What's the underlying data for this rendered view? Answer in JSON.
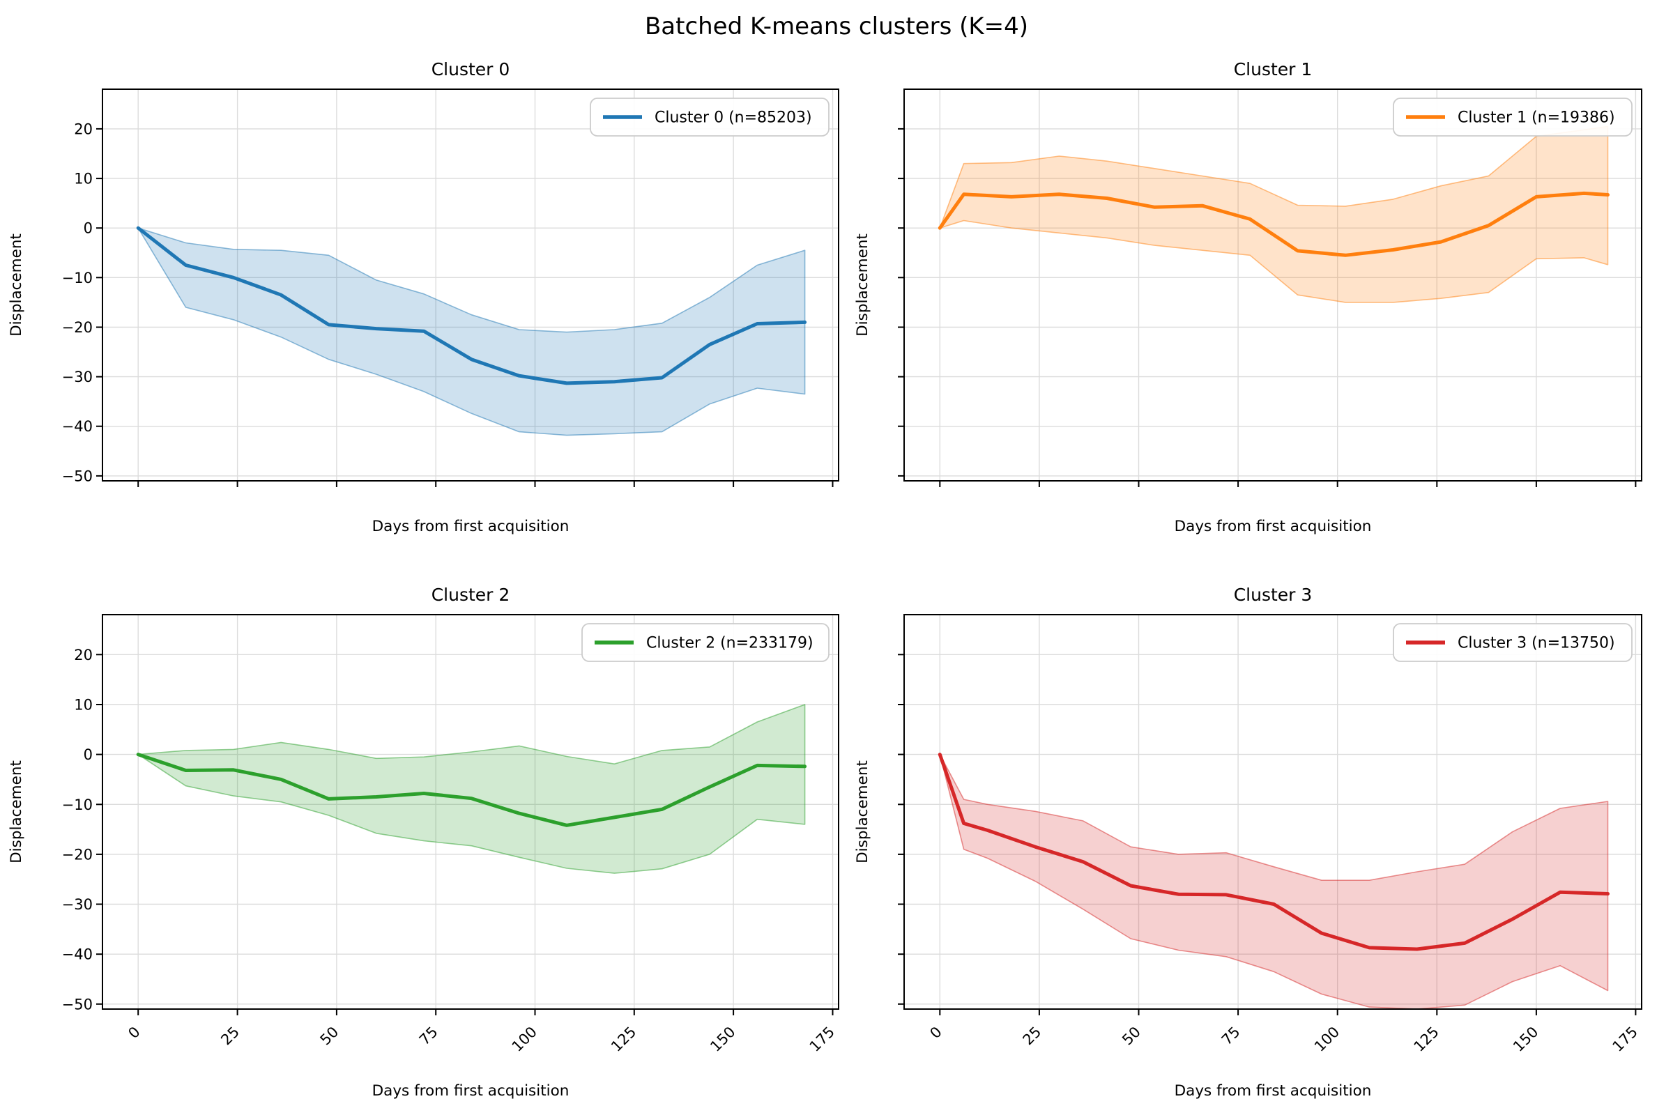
{
  "title": "Batched K-means clusters (K=4)",
  "chart_data": [
    {
      "type": "line",
      "title": "Cluster 0",
      "legend_label": "Cluster 0 (n=85203)",
      "color": "#1f77b4",
      "xlabel": "Days from first acquisition",
      "ylabel": "Displacement",
      "xlim": [
        -9,
        176.5
      ],
      "ylim": [
        -51,
        28
      ],
      "x_ticks": [
        0,
        25,
        50,
        75,
        100,
        125,
        150,
        175
      ],
      "x_tick_labels": [
        "0",
        "25",
        "50",
        "75",
        "100",
        "125",
        "150",
        "175"
      ],
      "y_ticks": [
        20,
        10,
        0,
        -10,
        -20,
        -30,
        -40,
        -50
      ],
      "y_tick_labels": [
        "20",
        "10",
        "0",
        "−10",
        "−20",
        "−30",
        "−40",
        "−50"
      ],
      "show_x_tick_labels": false,
      "show_y_tick_labels": true,
      "x": [
        0,
        12,
        24,
        36,
        48,
        60,
        72,
        84,
        96,
        108,
        120,
        132,
        144,
        156,
        168
      ],
      "mean": [
        0,
        -7.5,
        -10,
        -13.5,
        -19.5,
        -20.3,
        -20.8,
        -26.5,
        -29.8,
        -31.3,
        -31,
        -30.2,
        -23.5,
        -19.3,
        -19
      ],
      "band_upper": [
        0,
        -3,
        -4.3,
        -4.5,
        -5.5,
        -10.5,
        -13.3,
        -17.5,
        -20.5,
        -21,
        -20.5,
        -19.2,
        -14,
        -7.5,
        -4.5
      ],
      "band_lower": [
        0,
        -16,
        -18.5,
        -22,
        -26.5,
        -29.5,
        -33,
        -37.4,
        -41.1,
        -41.8,
        -41.5,
        -41.1,
        -35.5,
        -32.3,
        -33.5
      ]
    },
    {
      "type": "line",
      "title": "Cluster 1",
      "legend_label": "Cluster 1 (n=19386)",
      "color": "#ff7f0e",
      "xlabel": "Days from first acquisition",
      "ylabel": "Displacement",
      "xlim": [
        -9,
        176.5
      ],
      "ylim": [
        -51,
        28
      ],
      "x_ticks": [
        0,
        25,
        50,
        75,
        100,
        125,
        150,
        175
      ],
      "x_tick_labels": [
        "0",
        "25",
        "50",
        "75",
        "100",
        "125",
        "150",
        "175"
      ],
      "y_ticks": [
        20,
        10,
        0,
        -10,
        -20,
        -30,
        -40,
        -50
      ],
      "y_tick_labels": [
        "20",
        "10",
        "0",
        "−10",
        "−20",
        "−30",
        "−40",
        "−50"
      ],
      "show_x_tick_labels": false,
      "show_y_tick_labels": false,
      "x": [
        0,
        6,
        18,
        30,
        42,
        54,
        66,
        78,
        90,
        102,
        114,
        126,
        138,
        150,
        162,
        168
      ],
      "mean": [
        0,
        6.8,
        6.3,
        6.8,
        6,
        4.2,
        4.5,
        1.8,
        -4.6,
        -5.5,
        -4.4,
        -2.8,
        0.5,
        6.3,
        7,
        6.7
      ],
      "band_upper": [
        0,
        13,
        13.2,
        14.5,
        13.5,
        12,
        10.5,
        9,
        4.6,
        4.4,
        5.8,
        8.5,
        10.5,
        18.5,
        19.8,
        20.5
      ],
      "band_lower": [
        0,
        1.5,
        0,
        -1,
        -2,
        -3.5,
        -4.5,
        -5.5,
        -13.5,
        -15,
        -15,
        -14.2,
        -13,
        -6.2,
        -6,
        -7.4
      ]
    },
    {
      "type": "line",
      "title": "Cluster 2",
      "legend_label": "Cluster 2 (n=233179)",
      "color": "#2ca02c",
      "xlabel": "Days from first acquisition",
      "ylabel": "Displacement",
      "xlim": [
        -9,
        176.5
      ],
      "ylim": [
        -51,
        28
      ],
      "x_ticks": [
        0,
        25,
        50,
        75,
        100,
        125,
        150,
        175
      ],
      "x_tick_labels": [
        "0",
        "25",
        "50",
        "75",
        "100",
        "125",
        "150",
        "175"
      ],
      "y_ticks": [
        20,
        10,
        0,
        -10,
        -20,
        -30,
        -40,
        -50
      ],
      "y_tick_labels": [
        "20",
        "10",
        "0",
        "−10",
        "−20",
        "−30",
        "−40",
        "−50"
      ],
      "show_x_tick_labels": true,
      "show_y_tick_labels": true,
      "x": [
        0,
        12,
        24,
        36,
        48,
        60,
        72,
        84,
        96,
        108,
        120,
        132,
        144,
        156,
        168
      ],
      "mean": [
        0,
        -3.2,
        -3.1,
        -5,
        -8.9,
        -8.5,
        -7.8,
        -8.8,
        -11.8,
        -14.2,
        -12.6,
        -11,
        -6.5,
        -2.2,
        -2.4
      ],
      "band_upper": [
        0,
        0.8,
        1,
        2.4,
        1,
        -0.8,
        -0.5,
        0.5,
        1.7,
        -0.4,
        -1.9,
        0.8,
        1.5,
        6.5,
        10
      ],
      "band_lower": [
        0,
        -6.3,
        -8.3,
        -9.5,
        -12.2,
        -15.8,
        -17.3,
        -18.3,
        -20.6,
        -22.8,
        -23.8,
        -22.9,
        -20,
        -13,
        -14
      ]
    },
    {
      "type": "line",
      "title": "Cluster 3",
      "legend_label": "Cluster 3 (n=13750)",
      "color": "#d62728",
      "xlabel": "Days from first acquisition",
      "ylabel": "Displacement",
      "xlim": [
        -9,
        176.5
      ],
      "ylim": [
        -51,
        28
      ],
      "x_ticks": [
        0,
        25,
        50,
        75,
        100,
        125,
        150,
        175
      ],
      "x_tick_labels": [
        "0",
        "25",
        "50",
        "75",
        "100",
        "125",
        "150",
        "175"
      ],
      "y_ticks": [
        20,
        10,
        0,
        -10,
        -20,
        -30,
        -40,
        -50
      ],
      "y_tick_labels": [
        "20",
        "10",
        "0",
        "−10",
        "−20",
        "−30",
        "−40",
        "−50"
      ],
      "show_x_tick_labels": true,
      "show_y_tick_labels": false,
      "x": [
        0,
        6,
        12,
        24,
        36,
        48,
        60,
        72,
        84,
        96,
        108,
        120,
        132,
        144,
        156,
        168
      ],
      "mean": [
        0,
        -13.8,
        -15.2,
        -18.5,
        -21.5,
        -26.3,
        -28,
        -28.1,
        -30,
        -35.8,
        -38.7,
        -39,
        -37.8,
        -33,
        -27.6,
        -27.9
      ],
      "band_upper": [
        0,
        -9,
        -10,
        -11.4,
        -13.3,
        -18.5,
        -20,
        -19.7,
        -22.5,
        -25.2,
        -25.2,
        -23.5,
        -22,
        -15.5,
        -10.8,
        -9.4
      ],
      "band_lower": [
        0,
        -19,
        -20.8,
        -25.4,
        -31,
        -36.9,
        -39.2,
        -40.5,
        -43.5,
        -48,
        -50.6,
        -51,
        -50.2,
        -45.5,
        -42.3,
        -47.3
      ]
    }
  ],
  "style": {
    "grid_color": "#dcdcdc",
    "spine_color": "#000000",
    "legend_border_color": "#cccccc",
    "band_fill_opacity": 0.22,
    "band_edge_opacity": 0.5
  }
}
